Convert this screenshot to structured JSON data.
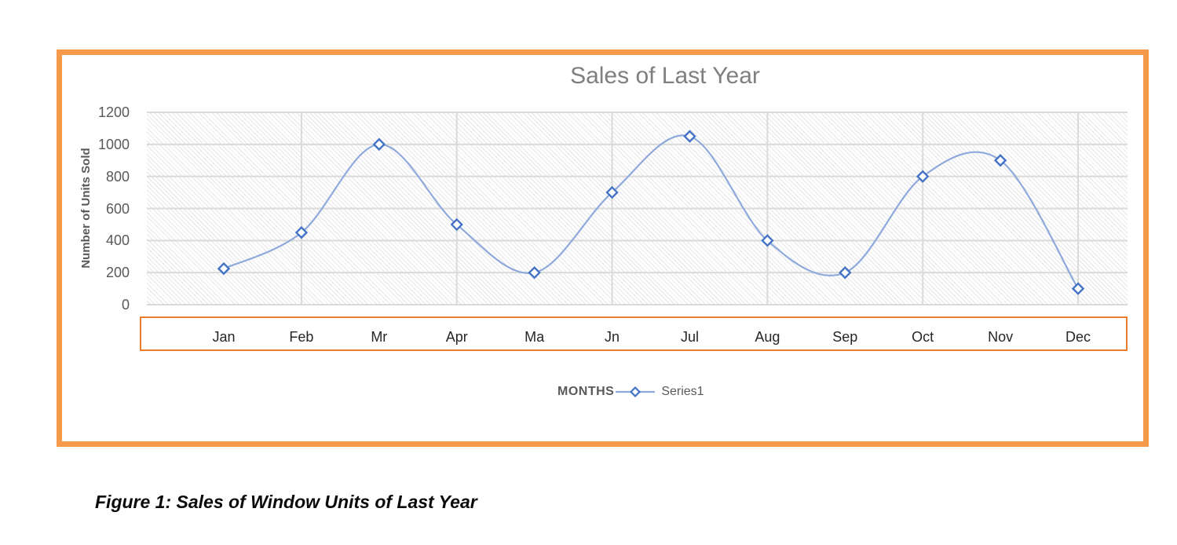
{
  "figure": {
    "caption": "Figure 1: Sales of Window Units of Last Year"
  },
  "chart_data": {
    "type": "line",
    "title": "Sales of Last Year",
    "xlabel": "MONTHS",
    "ylabel": "Number of Units Sold",
    "categories": [
      "Jan",
      "Feb",
      "Mr",
      "Apr",
      "Ma",
      "Jn",
      "Jul",
      "Aug",
      "Sep",
      "Oct",
      "Nov",
      "Dec"
    ],
    "series": [
      {
        "name": "Series1",
        "values": [
          225,
          450,
          1000,
          500,
          200,
          700,
          1050,
          400,
          200,
          800,
          900,
          100
        ]
      }
    ],
    "ylim": [
      0,
      1200
    ],
    "yticks": [
      0,
      200,
      400,
      600,
      800,
      1000,
      1200
    ],
    "grid": {
      "horizontal": true,
      "vertical_on_every_other_category": true
    },
    "legend_position": "bottom-center",
    "line_smoothing": true,
    "marker": "diamond",
    "colors": {
      "line": "#8ea9db",
      "marker_stroke": "#4472c4",
      "marker_fill": "#ffffff",
      "gridline": "#dadada",
      "title_text": "#7f7f7f",
      "axis_text": "#595959",
      "category_text": "#262626",
      "frame_border": "#f49a4a",
      "axis_box_border": "#e87e2b",
      "plot_hatch": "#e5e5e5"
    }
  }
}
